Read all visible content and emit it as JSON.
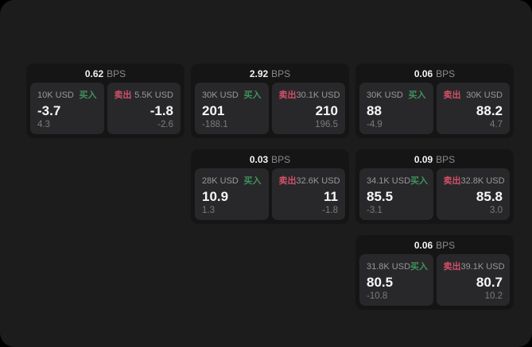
{
  "colors": {
    "background": "#000000",
    "panel": "#1c1c1d",
    "card": "#151516",
    "subpanel": "#28282a",
    "buy_accent": "#41925d",
    "sell_accent": "#d25068",
    "value_text": "#f7f7f9",
    "label_text": "#98989c"
  },
  "cards": [
    {
      "row": 1,
      "col": 1,
      "bps": "0.62",
      "bps_unit": "BPS",
      "buy": {
        "size": "10K USD",
        "side_label": "买入",
        "price": "-3.7",
        "delta": "4.3"
      },
      "sell": {
        "size": "5.5K USD",
        "side_label": "卖出",
        "price": "-1.8",
        "delta": "-2.6"
      }
    },
    {
      "row": 1,
      "col": 2,
      "bps": "2.92",
      "bps_unit": "BPS",
      "buy": {
        "size": "30K USD",
        "side_label": "买入",
        "price": "201",
        "delta": "-188.1"
      },
      "sell": {
        "size": "30.1K USD",
        "side_label": "卖出",
        "price": "210",
        "delta": "196.5"
      }
    },
    {
      "row": 1,
      "col": 3,
      "bps": "0.06",
      "bps_unit": "BPS",
      "buy": {
        "size": "30K USD",
        "side_label": "买入",
        "price": "88",
        "delta": "-4.9"
      },
      "sell": {
        "size": "30K USD",
        "side_label": "卖出",
        "price": "88.2",
        "delta": "4.7"
      }
    },
    {
      "row": 2,
      "col": 2,
      "bps": "0.03",
      "bps_unit": "BPS",
      "buy": {
        "size": "28K USD",
        "side_label": "买入",
        "price": "10.9",
        "delta": "1.3"
      },
      "sell": {
        "size": "32.6K USD",
        "side_label": "卖出",
        "price": "11",
        "delta": "-1.8"
      }
    },
    {
      "row": 2,
      "col": 3,
      "bps": "0.09",
      "bps_unit": "BPS",
      "buy": {
        "size": "34.1K USD",
        "side_label": "买入",
        "price": "85.5",
        "delta": "-3.1"
      },
      "sell": {
        "size": "32.8K USD",
        "side_label": "卖出",
        "price": "85.8",
        "delta": "3.0"
      }
    },
    {
      "row": 3,
      "col": 3,
      "bps": "0.06",
      "bps_unit": "BPS",
      "buy": {
        "size": "31.8K USD",
        "side_label": "买入",
        "price": "80.5",
        "delta": "-10.8"
      },
      "sell": {
        "size": "39.1K USD",
        "side_label": "卖出",
        "price": "80.7",
        "delta": "10.2"
      }
    }
  ]
}
